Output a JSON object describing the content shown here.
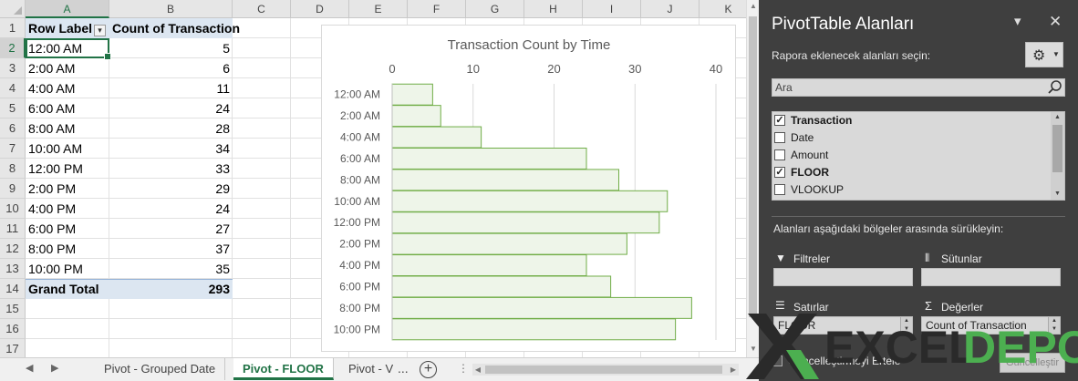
{
  "sheet": {
    "columns": [
      "A",
      "B",
      "C",
      "D",
      "E",
      "F",
      "G",
      "H",
      "I",
      "J",
      "K"
    ],
    "rows": [
      "1",
      "2",
      "3",
      "4",
      "5",
      "6",
      "7",
      "8",
      "9",
      "10",
      "11",
      "12",
      "13",
      "14",
      "15",
      "16",
      "17"
    ],
    "selected_column": "A",
    "selected_row": "2"
  },
  "pivot": {
    "header": {
      "row_label": "Row Label",
      "count_label": "Count of Transaction"
    },
    "rows": [
      {
        "label": "12:00 AM",
        "value": "5"
      },
      {
        "label": "2:00 AM",
        "value": "6"
      },
      {
        "label": "4:00 AM",
        "value": "11"
      },
      {
        "label": "6:00 AM",
        "value": "24"
      },
      {
        "label": "8:00 AM",
        "value": "28"
      },
      {
        "label": "10:00 AM",
        "value": "34"
      },
      {
        "label": "12:00 PM",
        "value": "33"
      },
      {
        "label": "2:00 PM",
        "value": "29"
      },
      {
        "label": "4:00 PM",
        "value": "24"
      },
      {
        "label": "6:00 PM",
        "value": "27"
      },
      {
        "label": "8:00 PM",
        "value": "37"
      },
      {
        "label": "10:00 PM",
        "value": "35"
      }
    ],
    "grand_total": {
      "label": "Grand Total",
      "value": "293"
    }
  },
  "chart_data": {
    "type": "bar",
    "orientation": "horizontal",
    "title": "Transaction Count by Time",
    "categories": [
      "12:00 AM",
      "2:00 AM",
      "4:00 AM",
      "6:00 AM",
      "8:00 AM",
      "10:00 AM",
      "12:00 PM",
      "2:00 PM",
      "4:00 PM",
      "6:00 PM",
      "8:00 PM",
      "10:00 PM"
    ],
    "values": [
      5,
      6,
      11,
      24,
      28,
      34,
      33,
      29,
      24,
      27,
      37,
      35
    ],
    "xlim": [
      0,
      40
    ],
    "xticks": [
      "0",
      "10",
      "20",
      "30",
      "40"
    ],
    "axis_position": "top",
    "grid": true,
    "bar_fill": "#eef5e9",
    "bar_stroke": "#70ad47"
  },
  "tabs": {
    "items": [
      "Pivot - Grouped Date",
      "Pivot - FLOOR",
      "Pivot - V"
    ],
    "active": "Pivot - FLOOR",
    "ellipsis": "...",
    "add": "+"
  },
  "pane": {
    "title": "PivotTable Alanları",
    "subtitle": "Rapora eklenecek alanları seçin:",
    "search_placeholder": "Ara",
    "fields": [
      {
        "name": "Transaction",
        "checked": true
      },
      {
        "name": "Date",
        "checked": false
      },
      {
        "name": "Amount",
        "checked": false
      },
      {
        "name": "FLOOR",
        "checked": true
      },
      {
        "name": "VLOOKUP",
        "checked": false
      }
    ],
    "drag_hint": "Alanları aşağıdaki bölgeler arasında sürükleyin:",
    "areas": {
      "filters": "Filtreler",
      "columns": "Sütunlar",
      "rows": "Satırlar",
      "values": "Değerler"
    },
    "rows_item": "FLOOR",
    "values_item": "Count of Transaction",
    "defer_label": "Güncelleştirmeyi Ertele",
    "update_label": "Güncelleştir"
  },
  "watermark": {
    "left": "EXCEL",
    "right": "DEPO"
  },
  "colors": {
    "accent": "#217346",
    "pane_bg": "#3f3f3f",
    "pivot_header": "#dce6f1",
    "watermark_green": "#4caf50"
  }
}
